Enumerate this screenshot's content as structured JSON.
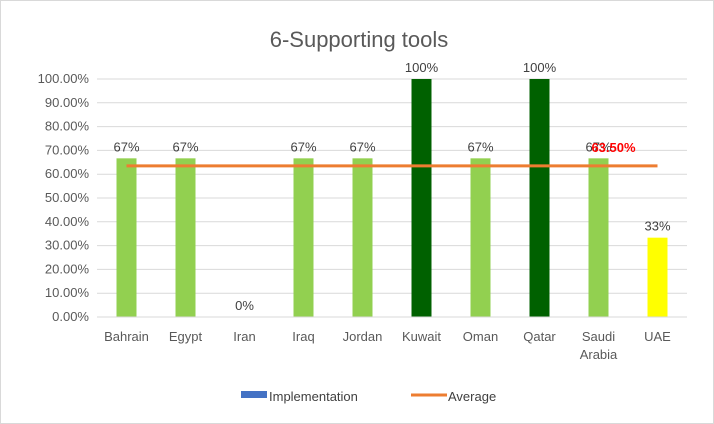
{
  "chart_data": {
    "type": "bar",
    "title": "6-Supporting tools",
    "categories": [
      "Bahrain",
      "Egypt",
      "Iran",
      "Iraq",
      "Jordan",
      "Kuwait",
      "Oman",
      "Qatar",
      "Saudi Arabia",
      "UAE"
    ],
    "category_lines": [
      [
        "Bahrain"
      ],
      [
        "Egypt"
      ],
      [
        "Iran"
      ],
      [
        "Iraq"
      ],
      [
        "Jordan"
      ],
      [
        "Kuwait"
      ],
      [
        "Oman"
      ],
      [
        "Qatar"
      ],
      [
        "Saudi",
        "Arabia"
      ],
      [
        "UAE"
      ]
    ],
    "series": [
      {
        "name": "Implementation",
        "values": [
          0.6667,
          0.6667,
          0,
          0.6667,
          0.6667,
          1.0,
          0.6667,
          1.0,
          0.6667,
          0.3333
        ],
        "data_labels": [
          "67%",
          "67%",
          "0%",
          "67%",
          "67%",
          "100%",
          "67%",
          "100%",
          "67%",
          "33%"
        ],
        "legend_color": "#4472c4",
        "bar_colors": [
          "#92d050",
          "#92d050",
          "#92d050",
          "#92d050",
          "#92d050",
          "#006100",
          "#92d050",
          "#006100",
          "#92d050",
          "#ffff00"
        ]
      },
      {
        "name": "Average",
        "type": "line",
        "value": 0.635,
        "label": "63.50%",
        "color": "#ed7d31",
        "label_color": "#ff0000"
      }
    ],
    "ylim": [
      0,
      1.0
    ],
    "yticks": [
      0,
      0.1,
      0.2,
      0.3,
      0.4,
      0.5,
      0.6,
      0.7,
      0.8,
      0.9,
      1.0
    ],
    "ytick_labels": [
      "0.00%",
      "10.00%",
      "20.00%",
      "30.00%",
      "40.00%",
      "50.00%",
      "60.00%",
      "70.00%",
      "80.00%",
      "90.00%",
      "100.00%"
    ],
    "grid": true,
    "legend_position": "bottom"
  }
}
